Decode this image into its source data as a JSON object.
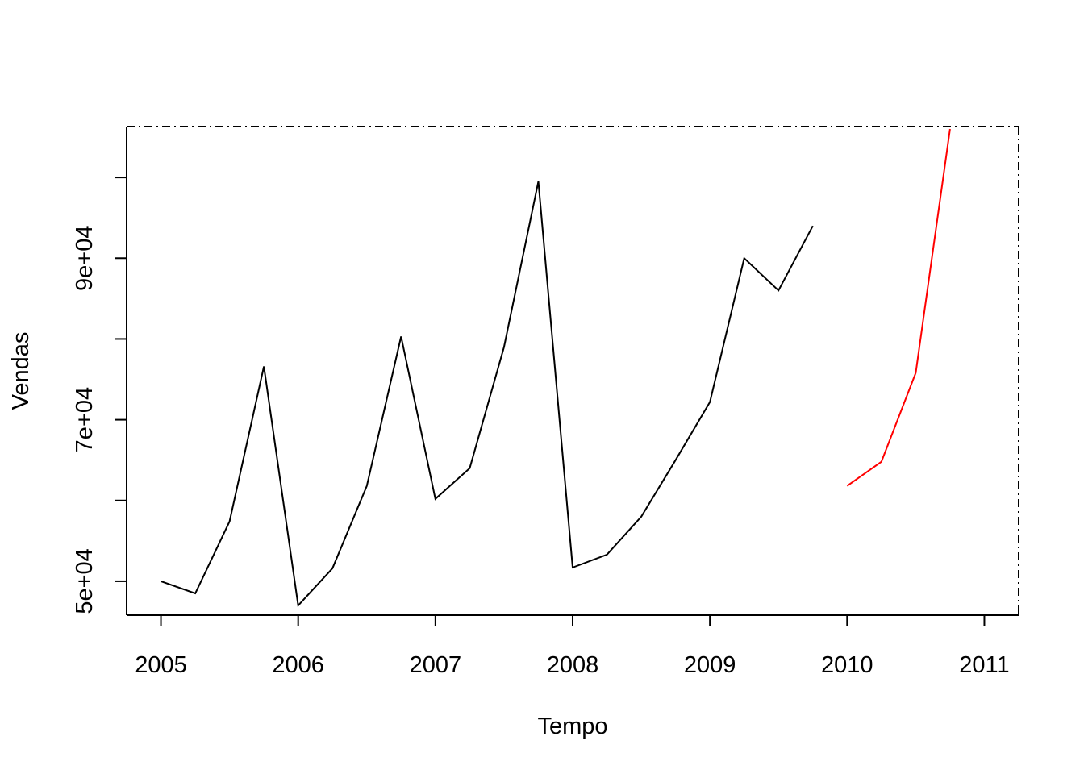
{
  "chart_data": {
    "type": "line",
    "title": "",
    "xlabel": "Tempo",
    "ylabel": "Vendas",
    "xlim": [
      2004.75,
      2011.25
    ],
    "ylim": [
      45800,
      106300
    ],
    "x_ticks": [
      {
        "value": 2005,
        "label": "2005"
      },
      {
        "value": 2006,
        "label": "2006"
      },
      {
        "value": 2007,
        "label": "2007"
      },
      {
        "value": 2008,
        "label": "2008"
      },
      {
        "value": 2009,
        "label": "2009"
      },
      {
        "value": 2010,
        "label": "2010"
      },
      {
        "value": 2011,
        "label": "2011"
      }
    ],
    "y_ticks": [
      {
        "value": 50000,
        "label": "5e+04"
      },
      {
        "value": 60000,
        "label": ""
      },
      {
        "value": 70000,
        "label": "7e+04"
      },
      {
        "value": 80000,
        "label": ""
      },
      {
        "value": 90000,
        "label": "9e+04"
      },
      {
        "value": 100000,
        "label": ""
      }
    ],
    "grid": false,
    "series": [
      {
        "color": "#000000",
        "x": [
          2005,
          2005.25,
          2005.5,
          2005.75,
          2006,
          2006.25,
          2006.5,
          2006.75,
          2007,
          2007.25,
          2007.5,
          2007.75,
          2008,
          2008.25,
          2008.5,
          2008.75,
          2009,
          2009.25,
          2009.5,
          2009.75
        ],
        "values": [
          50000,
          48500,
          57400,
          76600,
          47000,
          51600,
          61800,
          80300,
          60200,
          64000,
          79000,
          99500,
          51700,
          53300,
          58000,
          65000,
          72200,
          90000,
          86000,
          94000
        ]
      },
      {
        "color": "#ff0000",
        "x": [
          2010,
          2010.25,
          2010.5,
          2010.75
        ],
        "values": [
          61800,
          64800,
          75800,
          106000
        ]
      }
    ]
  }
}
